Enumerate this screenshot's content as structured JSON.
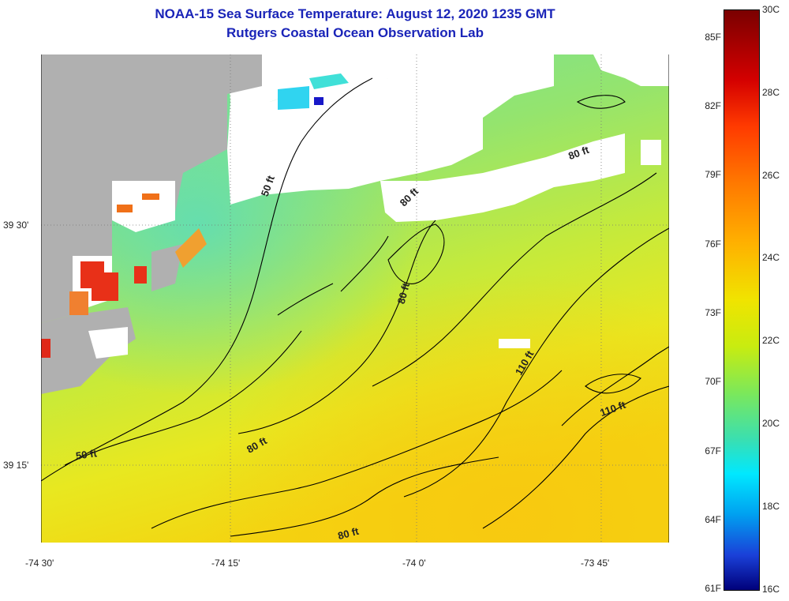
{
  "header": {
    "title": "NOAA-15 Sea Surface Temperature:  August 12, 2020 1235 GMT",
    "subtitle": "Rutgers Coastal Ocean Observation Lab"
  },
  "axes": {
    "x_labels": [
      "-74 30'",
      "-74 15'",
      "-74 0'",
      "-73 45'"
    ],
    "y_labels": [
      "39 30'",
      "39 15'"
    ]
  },
  "depth_labels": [
    "50 ft",
    "50 ft",
    "80 ft",
    "80 ft",
    "80 ft",
    "80 ft",
    "80 ft",
    "110 ft",
    "110 ft"
  ],
  "colorbar": {
    "fahrenheit": [
      "85F",
      "82F",
      "79F",
      "76F",
      "73F",
      "70F",
      "67F",
      "64F",
      "61F"
    ],
    "celsius": [
      "30C",
      "28C",
      "26C",
      "24C",
      "22C",
      "20C",
      "18C",
      "16C"
    ]
  },
  "colors": {
    "title": "#1a24b8",
    "land": "#b0b0b0",
    "no_data": "#ffffff",
    "warm_water": "#f3e000",
    "cool_water": "#74e0a0",
    "contour": "#000000"
  }
}
